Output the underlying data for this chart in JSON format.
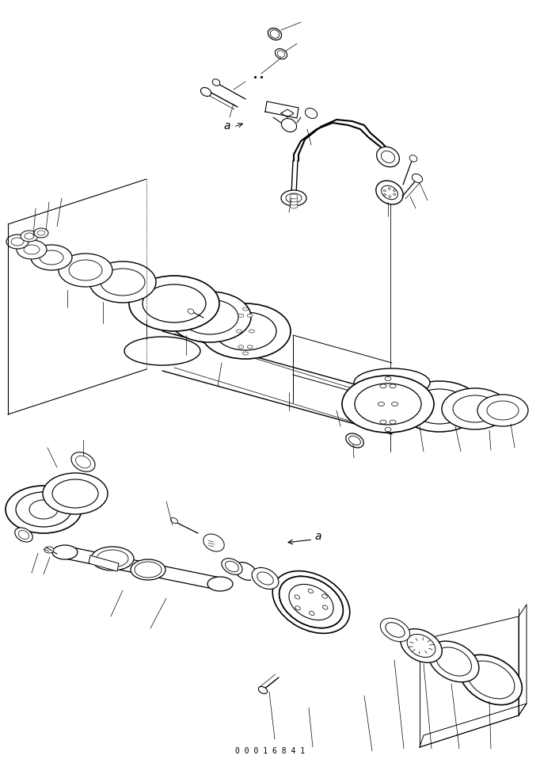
{
  "bg_color": "#ffffff",
  "line_color": "#000000",
  "fig_width": 6.82,
  "fig_height": 9.63,
  "dpi": 100,
  "footer_text": "0 0 0 1 6 8 4 1"
}
